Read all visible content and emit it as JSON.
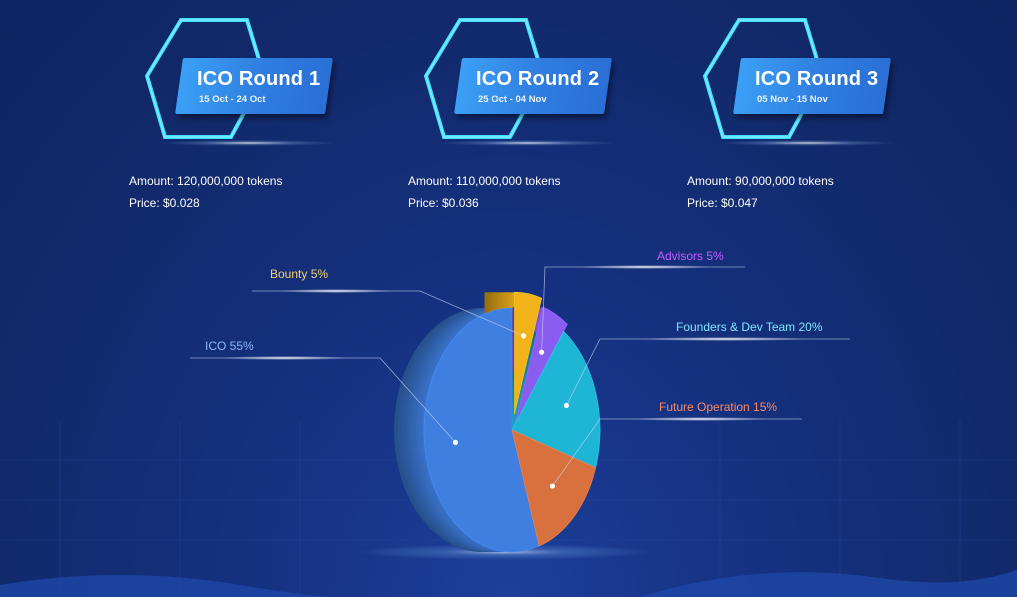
{
  "rounds": [
    {
      "title": "ICO Round 1",
      "dates": "15 Oct - 24 Oct",
      "amount": "Amount: 120,000,000 tokens",
      "price": "Price: $0.028"
    },
    {
      "title": "ICO Round 2",
      "dates": "25 Oct - 04 Nov",
      "amount": "Amount: 110,000,000 tokens",
      "price": "Price: $0.036"
    },
    {
      "title": "ICO Round 3",
      "dates": "05 Nov - 15 Nov",
      "amount": "Amount: 90,000,000 tokens",
      "price": "Price: $0.047"
    }
  ],
  "chart_data": {
    "type": "pie",
    "title": "",
    "slices": [
      {
        "label": "ICO 55%",
        "value": 55,
        "color": "#3f7fe0",
        "label_color": "#8fb6ff"
      },
      {
        "label": "Bounty 5%",
        "value": 5,
        "color": "#f2b21a",
        "label_color": "#f3d36c"
      },
      {
        "label": "Advisors 5%",
        "value": 5,
        "color": "#8a5cf0",
        "label_color": "#c85cff"
      },
      {
        "label": "Founders & Dev Team 20%",
        "value": 20,
        "color": "#1fb6d6",
        "label_color": "#7fe6ff"
      },
      {
        "label": "Future Operation 15%",
        "value": 15,
        "color": "#d9713f",
        "label_color": "#ff8a5e"
      }
    ],
    "legend": "callout-labels"
  },
  "colors": {
    "background": "#132a6e",
    "plate": "#2f7de0",
    "hex_outline": "#3fe0ff"
  }
}
